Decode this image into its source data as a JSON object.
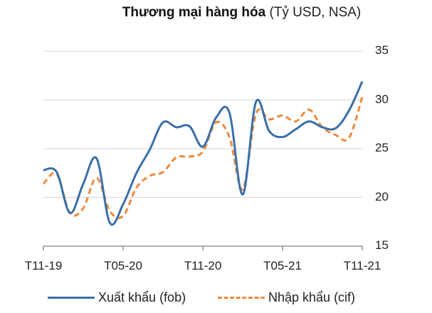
{
  "title": {
    "bold": "Thương mại hàng hóa",
    "unit": "(Tỷ USD, NSA)"
  },
  "colors": {
    "export": "#3a6fa8",
    "import": "#ed8a3f",
    "grid": "#d9d9d9",
    "axis": "#7f7f7f"
  },
  "legend": {
    "export_label": "Xuất khẩu (fob)",
    "import_label": "Nhập khẩu (cif)"
  },
  "axis": {
    "y_ticks": [
      "35",
      "30",
      "25",
      "20",
      "15"
    ],
    "x_ticks": [
      "T11-19",
      "T05-20",
      "T11-20",
      "T05-21",
      "T11-21"
    ]
  },
  "chart_data": {
    "type": "line",
    "title": "Thương mại hàng hóa (Tỷ USD, NSA)",
    "xlabel": "",
    "ylabel": "Tỷ USD",
    "ylim": [
      15,
      35
    ],
    "y_axis_position": "right",
    "grid": true,
    "legend_position": "bottom",
    "x": [
      "T11-19",
      "T12-19",
      "T01-20",
      "T02-20",
      "T03-20",
      "T04-20",
      "T05-20",
      "T06-20",
      "T07-20",
      "T08-20",
      "T09-20",
      "T10-20",
      "T11-20",
      "T12-20",
      "T01-21",
      "T02-21",
      "T03-21",
      "T04-21",
      "T05-21",
      "T06-21",
      "T07-21",
      "T08-21",
      "T09-21",
      "T10-21",
      "T11-21"
    ],
    "x_tick_labels": [
      "T11-19",
      "T05-20",
      "T11-20",
      "T05-21",
      "T11-21"
    ],
    "series": [
      {
        "name": "Xuất khẩu (fob)",
        "style": "solid",
        "values": [
          22.8,
          22.6,
          18.4,
          21.4,
          24.0,
          17.4,
          19.3,
          22.5,
          24.9,
          27.7,
          27.2,
          27.3,
          25.2,
          28.2,
          28.7,
          20.3,
          29.8,
          26.8,
          26.2,
          27.0,
          27.8,
          27.2,
          27.1,
          28.9,
          31.9
        ]
      },
      {
        "name": "Nhập khẩu (cif)",
        "style": "dashed",
        "values": [
          21.4,
          22.4,
          18.4,
          18.9,
          22.0,
          18.6,
          18.1,
          21.0,
          22.2,
          22.6,
          24.1,
          24.2,
          24.7,
          27.7,
          26.2,
          20.8,
          28.6,
          28.0,
          28.4,
          27.8,
          29.0,
          27.2,
          26.4,
          26.1,
          30.3
        ]
      }
    ]
  }
}
